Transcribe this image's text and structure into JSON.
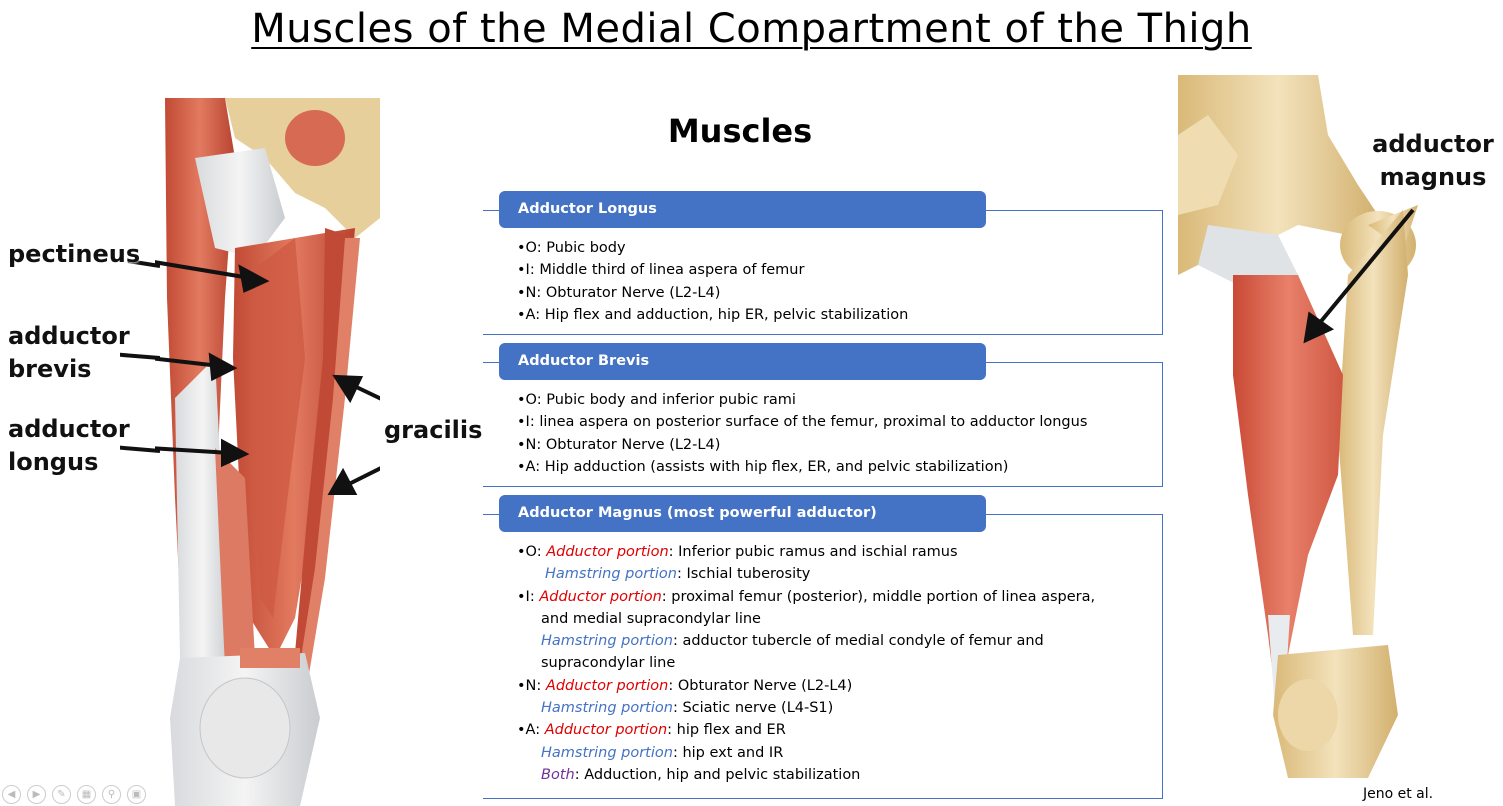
{
  "slide": {
    "title": "Muscles of the Medial Compartment of the Thigh",
    "section_title": "Muscles",
    "credit": "Jeno et al."
  },
  "left_figure": {
    "labels": {
      "pectineus": "pectineus",
      "adductor_brevis": "adductor\nbrevis",
      "adductor_longus": "adductor\nlongus",
      "gracilis": "gracilis"
    }
  },
  "right_figure": {
    "label": "adductor\nmagnus"
  },
  "boxes": {
    "longus": {
      "header": "Adductor Longus",
      "o": "•O: Pubic body",
      "i": "•I: Middle third of linea aspera of femur",
      "n": "•N: Obturator Nerve (L2-L4)",
      "a": "•A:  Hip flex and adduction, hip ER, pelvic stabilization"
    },
    "brevis": {
      "header": "Adductor Brevis",
      "o": "•O: Pubic body and inferior pubic rami",
      "i": "•I: linea aspera on posterior surface of the femur, proximal to adductor longus",
      "n": "•N: Obturator Nerve (L2-L4)",
      "a": "•A: Hip adduction (assists with hip flex, ER, and pelvic stabilization)"
    },
    "magnus": {
      "header": "Adductor Magnus (most powerful adductor)",
      "adductor_portion": "Adductor portion",
      "hamstring_portion": "Hamstring portion",
      "both": "Both",
      "o_prefix": "•O:  ",
      "o_add": ": Inferior pubic ramus and ischial ramus",
      "o_ham": ": Ischial tuberosity",
      "i_prefix": "•I:  ",
      "i_add_1": ": proximal femur (posterior), middle portion of linea aspera,",
      "i_add_2": "and medial supracondylar line",
      "i_ham_1": ": adductor tubercle of medial condyle of femur and",
      "i_ham_2": "supracondylar line",
      "n_prefix": "•N: ",
      "n_add": ": Obturator Nerve (L2-L4)",
      "n_ham": ": Sciatic nerve (L4-S1)",
      "a_prefix": "•A: ",
      "a_add": ": hip flex and ER",
      "a_ham": ": hip ext and IR",
      "a_both": ": Adduction, hip and pelvic stabilization"
    }
  },
  "colors": {
    "header_blue": "#4472C4",
    "adductor_red": "#E00000",
    "hamstring_blue": "#4472C4",
    "both_purple": "#7030A0",
    "muscle": "#D9624A",
    "bone": "#EBD4A4"
  },
  "toolbar_icons": [
    "prev-icon",
    "next-icon",
    "pen-icon",
    "slides-icon",
    "zoom-icon",
    "subtitle-icon"
  ]
}
